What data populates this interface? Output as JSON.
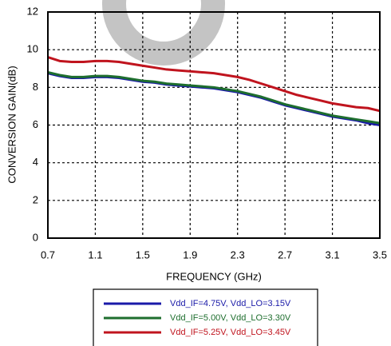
{
  "chart_data": {
    "type": "line",
    "xlabel": "FREQUENCY (GHz)",
    "ylabel": "CONVERSION GAIN(dB)",
    "x": [
      0.7,
      0.8,
      0.9,
      1.0,
      1.1,
      1.2,
      1.3,
      1.4,
      1.5,
      1.6,
      1.7,
      1.8,
      1.9,
      2.0,
      2.1,
      2.2,
      2.3,
      2.4,
      2.5,
      2.6,
      2.7,
      2.8,
      2.9,
      3.0,
      3.1,
      3.2,
      3.3,
      3.4,
      3.5
    ],
    "series": [
      {
        "name": "Vdd_IF=4.75V, Vdd_LO=3.15V",
        "color": "#1a1aa8",
        "values": [
          8.75,
          8.6,
          8.5,
          8.5,
          8.55,
          8.55,
          8.5,
          8.4,
          8.3,
          8.25,
          8.15,
          8.1,
          8.05,
          8.0,
          7.95,
          7.85,
          7.75,
          7.6,
          7.45,
          7.25,
          7.05,
          6.9,
          6.75,
          6.6,
          6.45,
          6.35,
          6.25,
          6.1,
          6.0
        ]
      },
      {
        "name": "Vdd_IF=5.00V, Vdd_LO=3.30V",
        "color": "#1e6e2e",
        "values": [
          8.8,
          8.65,
          8.55,
          8.55,
          8.6,
          8.6,
          8.55,
          8.45,
          8.35,
          8.3,
          8.2,
          8.15,
          8.1,
          8.05,
          8.0,
          7.9,
          7.8,
          7.65,
          7.5,
          7.3,
          7.1,
          6.95,
          6.8,
          6.65,
          6.5,
          6.4,
          6.3,
          6.2,
          6.1
        ]
      },
      {
        "name": "Vdd_IF=5.25V, Vdd_LO=3.45V",
        "color": "#c0141e",
        "values": [
          9.6,
          9.4,
          9.35,
          9.35,
          9.4,
          9.4,
          9.35,
          9.25,
          9.15,
          9.05,
          8.95,
          8.9,
          8.85,
          8.8,
          8.75,
          8.65,
          8.55,
          8.4,
          8.2,
          8.0,
          7.8,
          7.6,
          7.45,
          7.3,
          7.15,
          7.05,
          6.95,
          6.9,
          6.75
        ]
      }
    ],
    "xlim": [
      0.7,
      3.5
    ],
    "xticks": [
      0.7,
      1.1,
      1.5,
      1.9,
      2.3,
      2.7,
      3.1,
      3.5
    ],
    "ylim": [
      0,
      12
    ],
    "yticks": [
      0,
      2,
      4,
      6,
      8,
      10,
      12
    ],
    "grid": true
  }
}
